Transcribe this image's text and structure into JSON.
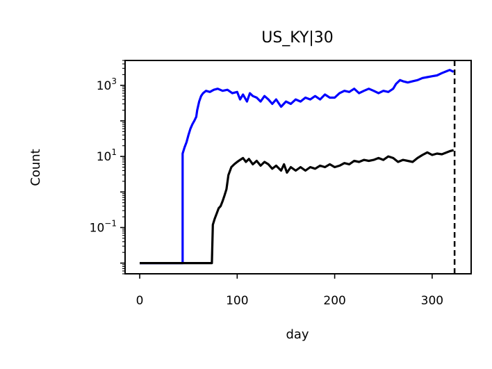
{
  "chart_data": {
    "type": "line",
    "title": "US_KY|30",
    "xlabel": "day",
    "ylabel": "Count",
    "yscale": "log",
    "xlim": [
      -15,
      340
    ],
    "ylim": [
      0.005,
      5000
    ],
    "x_ticks": [
      {
        "value": 0,
        "label": "0"
      },
      {
        "value": 100,
        "label": "100"
      },
      {
        "value": 200,
        "label": "200"
      },
      {
        "value": 300,
        "label": "300"
      }
    ],
    "y_ticks": [
      {
        "value": 0.1,
        "base": "10",
        "exp": "−1"
      },
      {
        "value": 10,
        "base": "10",
        "exp": "1"
      },
      {
        "value": 1000,
        "base": "10",
        "exp": "3"
      }
    ],
    "vline": {
      "x": 323,
      "style": "dashed",
      "color": "#000000"
    },
    "grid": false,
    "series": [
      {
        "color": "#0000ff",
        "points": [
          [
            0,
            0.01
          ],
          [
            44,
            0.01
          ],
          [
            44,
            12
          ],
          [
            46,
            18
          ],
          [
            48,
            25
          ],
          [
            50,
            40
          ],
          [
            52,
            60
          ],
          [
            54,
            80
          ],
          [
            56,
            100
          ],
          [
            58,
            130
          ],
          [
            59,
            200
          ],
          [
            61,
            350
          ],
          [
            63,
            500
          ],
          [
            65,
            600
          ],
          [
            68,
            700
          ],
          [
            72,
            650
          ],
          [
            76,
            750
          ],
          [
            80,
            800
          ],
          [
            85,
            700
          ],
          [
            90,
            750
          ],
          [
            95,
            600
          ],
          [
            100,
            650
          ],
          [
            103,
            400
          ],
          [
            106,
            550
          ],
          [
            110,
            350
          ],
          [
            113,
            600
          ],
          [
            116,
            500
          ],
          [
            120,
            450
          ],
          [
            124,
            350
          ],
          [
            128,
            500
          ],
          [
            132,
            400
          ],
          [
            136,
            300
          ],
          [
            140,
            400
          ],
          [
            145,
            250
          ],
          [
            150,
            350
          ],
          [
            155,
            300
          ],
          [
            160,
            400
          ],
          [
            165,
            350
          ],
          [
            170,
            450
          ],
          [
            175,
            400
          ],
          [
            180,
            500
          ],
          [
            185,
            400
          ],
          [
            190,
            550
          ],
          [
            195,
            450
          ],
          [
            200,
            450
          ],
          [
            205,
            600
          ],
          [
            210,
            700
          ],
          [
            215,
            650
          ],
          [
            220,
            800
          ],
          [
            225,
            600
          ],
          [
            230,
            700
          ],
          [
            235,
            800
          ],
          [
            240,
            700
          ],
          [
            245,
            600
          ],
          [
            250,
            700
          ],
          [
            255,
            650
          ],
          [
            260,
            800
          ],
          [
            263,
            1100
          ],
          [
            267,
            1400
          ],
          [
            270,
            1300
          ],
          [
            275,
            1200
          ],
          [
            280,
            1300
          ],
          [
            285,
            1400
          ],
          [
            290,
            1600
          ],
          [
            295,
            1700
          ],
          [
            300,
            1800
          ],
          [
            305,
            1900
          ],
          [
            310,
            2200
          ],
          [
            315,
            2500
          ],
          [
            318,
            2700
          ],
          [
            322,
            2400
          ]
        ]
      },
      {
        "color": "#000000",
        "points": [
          [
            0,
            0.01
          ],
          [
            74,
            0.01
          ],
          [
            75,
            0.12
          ],
          [
            77,
            0.18
          ],
          [
            79,
            0.25
          ],
          [
            81,
            0.35
          ],
          [
            83,
            0.4
          ],
          [
            85,
            0.55
          ],
          [
            87,
            0.8
          ],
          [
            89,
            1.2
          ],
          [
            91,
            3
          ],
          [
            94,
            5
          ],
          [
            97,
            6
          ],
          [
            100,
            7
          ],
          [
            103,
            8
          ],
          [
            106,
            9
          ],
          [
            109,
            7
          ],
          [
            112,
            8.5
          ],
          [
            116,
            6
          ],
          [
            120,
            7.5
          ],
          [
            124,
            5.5
          ],
          [
            128,
            7
          ],
          [
            132,
            6
          ],
          [
            136,
            4.5
          ],
          [
            140,
            5.5
          ],
          [
            145,
            4
          ],
          [
            148,
            6
          ],
          [
            151,
            3.5
          ],
          [
            155,
            5
          ],
          [
            160,
            4
          ],
          [
            165,
            5
          ],
          [
            170,
            4
          ],
          [
            175,
            5
          ],
          [
            180,
            4.5
          ],
          [
            185,
            5.5
          ],
          [
            190,
            5
          ],
          [
            195,
            6
          ],
          [
            200,
            5
          ],
          [
            205,
            5.5
          ],
          [
            210,
            6.5
          ],
          [
            215,
            6
          ],
          [
            220,
            7.5
          ],
          [
            225,
            7
          ],
          [
            230,
            8
          ],
          [
            235,
            7.5
          ],
          [
            240,
            8
          ],
          [
            245,
            9
          ],
          [
            250,
            8
          ],
          [
            255,
            10
          ],
          [
            260,
            9
          ],
          [
            265,
            7
          ],
          [
            270,
            8
          ],
          [
            275,
            7.5
          ],
          [
            280,
            7
          ],
          [
            285,
            9
          ],
          [
            290,
            11
          ],
          [
            295,
            13
          ],
          [
            300,
            11
          ],
          [
            305,
            12
          ],
          [
            310,
            11.5
          ],
          [
            315,
            13
          ],
          [
            318,
            14
          ],
          [
            322,
            15
          ]
        ]
      }
    ]
  }
}
